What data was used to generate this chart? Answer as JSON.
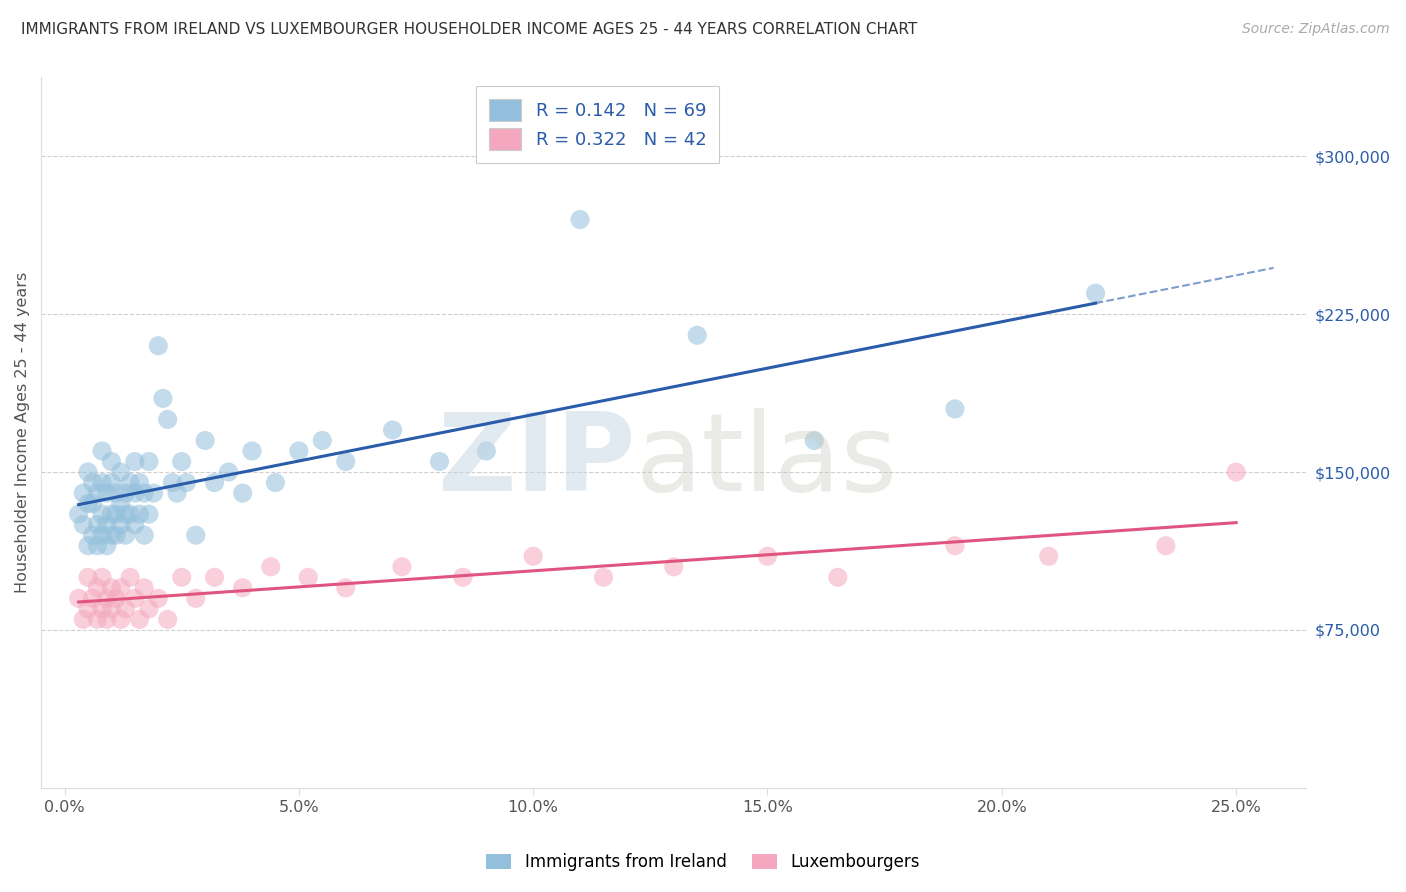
{
  "title": "IMMIGRANTS FROM IRELAND VS LUXEMBOURGER HOUSEHOLDER INCOME AGES 25 - 44 YEARS CORRELATION CHART",
  "source": "Source: ZipAtlas.com",
  "ylabel": "Householder Income Ages 25 - 44 years",
  "xtick_labels": [
    "0.0%",
    "5.0%",
    "10.0%",
    "15.0%",
    "20.0%",
    "25.0%"
  ],
  "xtick_vals": [
    0.0,
    0.05,
    0.1,
    0.15,
    0.2,
    0.25
  ],
  "ytick_labels": [
    "$75,000",
    "$150,000",
    "$225,000",
    "$300,000"
  ],
  "ytick_vals": [
    75000,
    150000,
    225000,
    300000
  ],
  "ylim": [
    0,
    337500
  ],
  "xlim": [
    -0.005,
    0.265
  ],
  "legend_box_label1": "R = 0.142   N = 69",
  "legend_box_label2": "R = 0.322   N = 42",
  "legend_label1": "Immigrants from Ireland",
  "legend_label2": "Luxembourgers",
  "blue_color": "#92bfdb",
  "pink_color": "#f4a8bf",
  "blue_line_color": "#2a5caa",
  "pink_line_color": "#e05580",
  "title_color": "#333333",
  "source_color": "#aaaaaa",
  "right_tick_color": "#2a5caa",
  "ireland_x": [
    0.003,
    0.004,
    0.004,
    0.005,
    0.005,
    0.005,
    0.006,
    0.006,
    0.006,
    0.007,
    0.007,
    0.007,
    0.008,
    0.008,
    0.008,
    0.008,
    0.009,
    0.009,
    0.009,
    0.01,
    0.01,
    0.01,
    0.01,
    0.011,
    0.011,
    0.011,
    0.012,
    0.012,
    0.012,
    0.013,
    0.013,
    0.013,
    0.014,
    0.014,
    0.015,
    0.015,
    0.015,
    0.016,
    0.016,
    0.017,
    0.017,
    0.018,
    0.018,
    0.019,
    0.02,
    0.021,
    0.022,
    0.023,
    0.024,
    0.025,
    0.026,
    0.028,
    0.03,
    0.032,
    0.035,
    0.038,
    0.04,
    0.045,
    0.05,
    0.055,
    0.06,
    0.07,
    0.08,
    0.09,
    0.11,
    0.135,
    0.16,
    0.19,
    0.22
  ],
  "ireland_y": [
    130000,
    125000,
    140000,
    115000,
    135000,
    150000,
    120000,
    145000,
    135000,
    125000,
    140000,
    115000,
    130000,
    145000,
    120000,
    160000,
    125000,
    140000,
    115000,
    130000,
    145000,
    120000,
    155000,
    130000,
    140000,
    120000,
    135000,
    150000,
    125000,
    140000,
    130000,
    120000,
    145000,
    130000,
    140000,
    125000,
    155000,
    130000,
    145000,
    140000,
    120000,
    155000,
    130000,
    140000,
    210000,
    185000,
    175000,
    145000,
    140000,
    155000,
    145000,
    120000,
    165000,
    145000,
    150000,
    140000,
    160000,
    145000,
    160000,
    165000,
    155000,
    170000,
    155000,
    160000,
    270000,
    215000,
    165000,
    180000,
    235000
  ],
  "lux_x": [
    0.003,
    0.004,
    0.005,
    0.005,
    0.006,
    0.007,
    0.007,
    0.008,
    0.008,
    0.009,
    0.009,
    0.01,
    0.01,
    0.011,
    0.012,
    0.012,
    0.013,
    0.014,
    0.015,
    0.016,
    0.017,
    0.018,
    0.02,
    0.022,
    0.025,
    0.028,
    0.032,
    0.038,
    0.044,
    0.052,
    0.06,
    0.072,
    0.085,
    0.1,
    0.115,
    0.13,
    0.15,
    0.165,
    0.19,
    0.21,
    0.235,
    0.25
  ],
  "lux_y": [
    90000,
    80000,
    85000,
    100000,
    90000,
    80000,
    95000,
    85000,
    100000,
    90000,
    80000,
    95000,
    85000,
    90000,
    80000,
    95000,
    85000,
    100000,
    90000,
    80000,
    95000,
    85000,
    90000,
    80000,
    100000,
    90000,
    100000,
    95000,
    105000,
    100000,
    95000,
    105000,
    100000,
    110000,
    100000,
    105000,
    110000,
    100000,
    115000,
    110000,
    115000,
    150000
  ]
}
